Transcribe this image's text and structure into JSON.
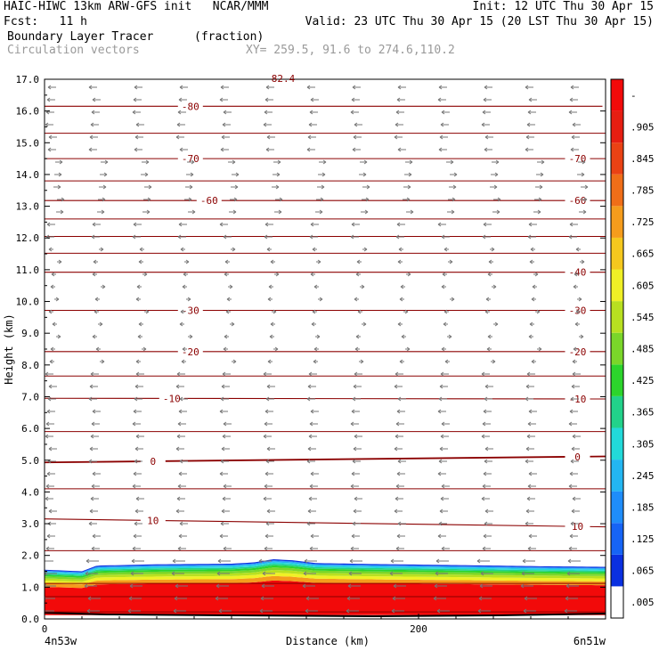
{
  "header": {
    "line1_left": "HAIC-HIWC 13km ARW-GFS init   NCAR/MMM",
    "line1_right": "Init: 12 UTC Thu 30 Apr 15",
    "line2_left": "Fcst:   11 h",
    "line2_right": "Valid: 23 UTC Thu 30 Apr 15 (20 LST Thu 30 Apr 15)",
    "field_name": "Boundary Layer Tracer",
    "field_units": "(fraction)",
    "vector_name": "Circulation vectors",
    "xy_range": "XY= 259.5, 91.6 to 274.6,110.2"
  },
  "chart_data": {
    "type": "heatmap",
    "title": "Boundary Layer Tracer",
    "xlabel": "Distance (km)",
    "ylabel": "Height (km)",
    "xlim": [
      0,
      300
    ],
    "ylim": [
      0,
      17
    ],
    "x_ticks": [
      {
        "value": 0,
        "label": "0"
      },
      {
        "value": 200,
        "label": "200"
      }
    ],
    "x_end_labels": {
      "left": "4n53w",
      "right": "6n51w"
    },
    "y_ticks": [
      "0.0",
      "1.0",
      "2.0",
      "3.0",
      "4.0",
      "5.0",
      "6.0",
      "7.0",
      "8.0",
      "9.0",
      "10.0",
      "11.0",
      "12.0",
      "13.0",
      "14.0",
      "15.0",
      "16.0",
      "17.0"
    ],
    "colorbar": {
      "labels": [
        ".005",
        ".065",
        ".125",
        ".185",
        ".245",
        ".305",
        ".365",
        ".425",
        ".485",
        ".545",
        ".605",
        ".665",
        ".725",
        ".785",
        ".845",
        ".905",
        "-"
      ],
      "colors": [
        "#ffffff",
        "#0a30e0",
        "#1664f5",
        "#1f8dfa",
        "#23b6f2",
        "#22d9d9",
        "#22d28a",
        "#2cd42c",
        "#7ad62a",
        "#b8e020",
        "#f0f026",
        "#f5c81e",
        "#f59c1c",
        "#f06e18",
        "#ea4214",
        "#e61e12",
        "#f20a0a"
      ]
    },
    "tracer_top_km": [
      [
        0,
        1.55
      ],
      [
        20,
        1.5
      ],
      [
        28,
        1.68
      ],
      [
        60,
        1.72
      ],
      [
        100,
        1.74
      ],
      [
        112,
        1.78
      ],
      [
        122,
        1.88
      ],
      [
        132,
        1.85
      ],
      [
        145,
        1.76
      ],
      [
        175,
        1.73
      ],
      [
        215,
        1.7
      ],
      [
        265,
        1.66
      ],
      [
        300,
        1.64
      ]
    ],
    "isotherms": [
      {
        "level": 10,
        "label": "10",
        "y": [
          3.15,
          2.9
        ],
        "label_x": [
          58,
          285
        ]
      },
      {
        "level": 0,
        "label": "0",
        "y": [
          4.93,
          5.12
        ],
        "label_x": [
          58,
          285
        ]
      },
      {
        "level": -10,
        "label": "-10",
        "y": [
          6.95,
          6.93
        ],
        "label_x": [
          68,
          285
        ]
      },
      {
        "level": -20,
        "label": "-20",
        "y": [
          8.42,
          8.42
        ],
        "label_x": [
          78,
          285
        ]
      },
      {
        "level": -30,
        "label": "-30",
        "y": [
          9.72,
          9.72
        ],
        "label_x": [
          78,
          285
        ]
      },
      {
        "level": -40,
        "label": "-40",
        "y": [
          10.92,
          10.92
        ],
        "label_x": [
          285
        ]
      },
      {
        "level": -60,
        "label": "-60",
        "y": [
          13.18,
          13.18
        ],
        "label_x": [
          88,
          285
        ]
      },
      {
        "level": -70,
        "label": "-70",
        "y": [
          14.5,
          14.5
        ],
        "label_x": [
          78,
          285
        ]
      },
      {
        "level": -80,
        "label": "-80",
        "y": [
          16.15,
          16.15
        ],
        "label_x": [
          78,
          305
        ]
      }
    ],
    "unlabeled_contours_km": [
      0.22,
      0.7,
      1.12,
      2.15,
      4.1,
      5.9,
      7.65,
      11.52,
      12.05,
      12.6,
      13.8,
      15.3
    ],
    "top_label": "82.4"
  }
}
